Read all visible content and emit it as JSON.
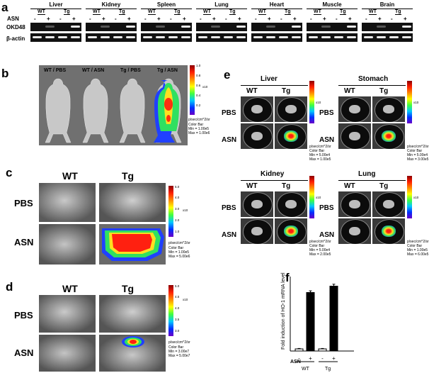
{
  "panels": {
    "a": {
      "label": "a",
      "asn_label": "ASN",
      "tissues": [
        "Liver",
        "Kidney",
        "Spleen",
        "Lung",
        "Heart",
        "Muscle",
        "Brain"
      ],
      "genotypes": [
        "WT",
        "Tg"
      ],
      "treatments": [
        "-",
        "+",
        "-",
        "+"
      ],
      "rows": [
        "OKD48",
        "β-actin"
      ]
    },
    "b": {
      "label": "b",
      "titles": [
        "WT / PBS",
        "WT / ASN",
        "Tg / PBS",
        "Tg / ASN"
      ],
      "scale_ticks": [
        "1.0",
        "0.8",
        "0.6",
        "0.4",
        "0.2"
      ],
      "exponent": "x10",
      "units": "p/sec/cm^2/sr",
      "color_bar": "Color Bar",
      "min": "Min = 1.00e5",
      "max": "Max = 1.00e6"
    },
    "c": {
      "label": "c",
      "columns": [
        "WT",
        "Tg"
      ],
      "rows": [
        "PBS",
        "ASN"
      ],
      "scale_ticks": [
        "5.0",
        "4.0",
        "3.0",
        "2.0",
        "1.0"
      ],
      "exponent": "x10",
      "units": "p/sec/cm^2/sr",
      "color_bar": "Color Bar",
      "min": "Min = 1.00e5",
      "max": "Max = 5.00e6"
    },
    "d": {
      "label": "d",
      "columns": [
        "WT",
        "Tg"
      ],
      "rows": [
        "PBS",
        "ASN"
      ],
      "scale_ticks": [
        "5.0",
        "4.5",
        "4.0",
        "3.5",
        "3.0"
      ],
      "exponent": "x10",
      "units": "p/sec/cm^2/sr",
      "color_bar": "Color Bar",
      "min": "Min = 3.00e7",
      "max": "Max = 5.00e7"
    },
    "e": {
      "label": "e",
      "organs": [
        {
          "name": "Liver",
          "min": "Min = 5.00e4",
          "max": "Max = 1.00e5"
        },
        {
          "name": "Stomach",
          "min": "Min = 5.00e4",
          "max": "Max = 3.00e5"
        },
        {
          "name": "Kidney",
          "min": "Min = 5.00e4",
          "max": "Max = 2.00e5"
        },
        {
          "name": "Lung",
          "min": "Min = 1.00e5",
          "max": "Max = 6.00e5"
        }
      ],
      "columns": [
        "WT",
        "Tg"
      ],
      "rows": [
        "PBS",
        "ASN"
      ],
      "exponent": "x10",
      "units": "p/sec/cm^2/sr",
      "color_bar": "Color Bar"
    },
    "f": {
      "label": "f",
      "ylabel": "Fold induction of HO-1 mRNA level",
      "asn_label": "ASN",
      "groups": [
        "WT",
        "Tg"
      ]
    }
  },
  "chart_data": {
    "type": "bar",
    "title": "",
    "categories": [
      "WT -",
      "WT +",
      "Tg -",
      "Tg +"
    ],
    "series": [
      {
        "values": [
          1,
          27.5,
          1,
          30.5
        ]
      }
    ],
    "errors": [
      0.2,
      0.8,
      0.2,
      0.9
    ],
    "xlabel": "",
    "ylabel": "Fold induction of HO-1 mRNA level",
    "ylim": [
      0,
      35
    ],
    "grid": false
  }
}
